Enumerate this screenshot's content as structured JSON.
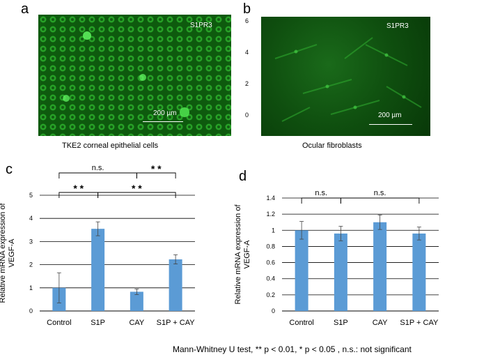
{
  "panel_a": {
    "letter": "a",
    "marker": "S1PR3",
    "scale_bar": "200 µm",
    "caption": "TKE2 corneal epithelial cells"
  },
  "panel_b": {
    "letter": "b",
    "marker": "S1PR3",
    "scale_bar": "200 µm",
    "caption": "Ocular fibroblasts",
    "stray_ticks": [
      "6",
      "4",
      "2",
      "0"
    ]
  },
  "chart_data": [
    {
      "type": "bar",
      "letter": "c",
      "categories": [
        "Control",
        "S1P",
        "CAY",
        "S1P + CAY"
      ],
      "values": [
        1.0,
        3.55,
        0.83,
        2.23
      ],
      "errors": [
        0.65,
        0.3,
        0.12,
        0.2
      ],
      "ylabel": "Relative mRNA expression of VEGF-A",
      "ylim": [
        0,
        5
      ],
      "yticks": [
        "0",
        "1",
        "2",
        "3",
        "4",
        "5"
      ],
      "grid": true,
      "bar_color": "#5b9bd5",
      "brackets": [
        {
          "from": 0,
          "to": 2,
          "label": "n.s.",
          "level": 2
        },
        {
          "from": 2,
          "to": 3,
          "label": "* *",
          "level": 2
        },
        {
          "from": 0,
          "to": 1,
          "label": "* *",
          "level": 1
        },
        {
          "from": 1,
          "to": 3,
          "label": "* *",
          "level": 1
        }
      ]
    },
    {
      "type": "bar",
      "letter": "d",
      "categories": [
        "Control",
        "S1P",
        "CAY",
        "S1P + CAY"
      ],
      "values": [
        1.0,
        0.96,
        1.1,
        0.96
      ],
      "errors": [
        0.11,
        0.09,
        0.09,
        0.08
      ],
      "ylabel": "Relative mRNA expression of VEGF-A",
      "ylim": [
        0,
        1.4
      ],
      "yticks": [
        "0",
        "0.2",
        "0.4",
        "0.6",
        "0.8",
        "1",
        "1.2",
        "1.4"
      ],
      "grid": true,
      "bar_color": "#5b9bd5",
      "brackets": [
        {
          "from": 0,
          "to": 1,
          "label": "n.s.",
          "level": 1
        },
        {
          "from": 1,
          "to": 3,
          "label": "n.s.",
          "level": 1
        }
      ]
    }
  ],
  "footnote": {
    "text": "Mann-Whitney U test, ** p < 0.01, * p < 0.05 , n.s.: not significant"
  }
}
